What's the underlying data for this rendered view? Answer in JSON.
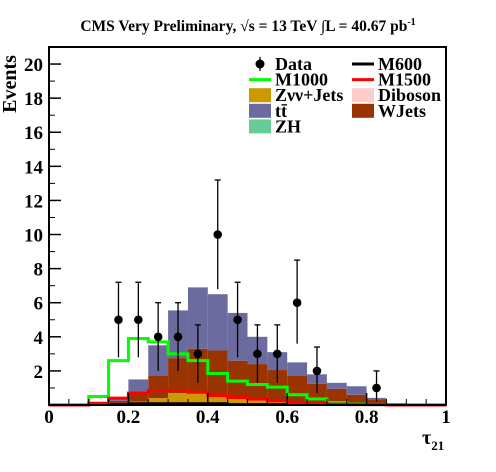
{
  "chart_data": {
    "type": "bar",
    "title": "CMS Very Preliminary, √s = 13 TeV ∫L = 40.67 pb",
    "title_superscript": "-1",
    "xlabel": "τ",
    "xlabel_subscript": "21",
    "ylabel": "Events",
    "xlim": [
      0,
      1
    ],
    "ylim": [
      0,
      21
    ],
    "xticks": [
      "0",
      "0.2",
      "0.4",
      "0.6",
      "0.8",
      "1"
    ],
    "yticks": [
      "2",
      "4",
      "6",
      "8",
      "10",
      "12",
      "14",
      "16",
      "18",
      "20"
    ],
    "bin_edges": [
      0.0,
      0.05,
      0.1,
      0.15,
      0.2,
      0.25,
      0.3,
      0.35,
      0.4,
      0.45,
      0.5,
      0.55,
      0.6,
      0.65,
      0.7,
      0.75,
      0.8,
      0.85,
      0.9,
      0.95,
      1.0
    ],
    "stacked_series": [
      {
        "name": "Zνν+Jets",
        "color": "#cc9900",
        "values": [
          0,
          0,
          0,
          0.05,
          0.2,
          0.4,
          0.7,
          0.8,
          0.55,
          0.35,
          0.25,
          0.2,
          0.15,
          0.1,
          0.1,
          0.05,
          0.02,
          0,
          0,
          0
        ]
      },
      {
        "name": "WJets",
        "color": "#993300",
        "values": [
          0,
          0,
          0,
          0.2,
          0.55,
          1.3,
          2.05,
          2.5,
          2.65,
          2.25,
          2.15,
          1.85,
          1.55,
          1.15,
          0.85,
          0.55,
          0.3,
          0.1,
          0,
          0
        ]
      },
      {
        "name": "tt̄",
        "color": "#6b6b9f",
        "values": [
          0,
          0,
          0,
          0.15,
          0.75,
          1.8,
          2.8,
          3.6,
          3.3,
          2.8,
          1.6,
          1.05,
          0.8,
          0.55,
          0.35,
          0.5,
          0.1,
          0,
          0,
          0
        ]
      }
    ],
    "other_series": [
      {
        "name": "Diboson",
        "color": "#ffcccc",
        "values": []
      },
      {
        "name": "ZH",
        "color": "#66cc99",
        "values": []
      }
    ],
    "signal_series": [
      {
        "name": "M600",
        "color": "#000000",
        "values": [
          0,
          0,
          0.05,
          0.05,
          0.1,
          0.1,
          0.1,
          0.1,
          0.1,
          0.05,
          0.05,
          0.05,
          0.05,
          0,
          0,
          0,
          0,
          0,
          0,
          0
        ]
      },
      {
        "name": "M1000",
        "color": "#00ff00",
        "values": [
          0,
          0,
          0.5,
          2.6,
          3.9,
          3.7,
          3.0,
          2.6,
          1.85,
          1.4,
          1.2,
          1.05,
          0.6,
          0.35,
          0.15,
          0.05,
          0.02,
          0,
          0,
          0
        ]
      },
      {
        "name": "M1500",
        "color": "#ff0000",
        "values": [
          0,
          0,
          0.1,
          0.4,
          0.7,
          0.85,
          0.85,
          0.75,
          0.55,
          0.45,
          0.35,
          0.25,
          0.15,
          0.1,
          0.05,
          0.02,
          0.02,
          0,
          0,
          0
        ]
      }
    ],
    "data_points": {
      "name": "Data",
      "x": [
        0.175,
        0.225,
        0.275,
        0.325,
        0.375,
        0.425,
        0.475,
        0.525,
        0.575,
        0.625,
        0.675,
        0.825
      ],
      "y": [
        5,
        5,
        4,
        4,
        3,
        10,
        5,
        3,
        3,
        6,
        2,
        1
      ],
      "err_up": [
        2.2,
        2.2,
        2.0,
        2.0,
        1.7,
        3.2,
        2.2,
        1.7,
        1.7,
        2.5,
        1.4,
        1.0
      ],
      "err_down": [
        2.2,
        2.2,
        2.0,
        2.0,
        1.7,
        3.2,
        2.2,
        1.7,
        1.7,
        2.4,
        1.3,
        0.8
      ]
    },
    "legend": {
      "placement": "top-right",
      "entries_left": [
        {
          "name": "Data",
          "style": "marker"
        },
        {
          "name": "M1000",
          "style": "line",
          "color": "#00ff00"
        },
        {
          "name": "Zνν+Jets",
          "style": "fill",
          "color": "#cc9900"
        },
        {
          "name": "tt̄",
          "style": "fill",
          "color": "#6b6b9f"
        },
        {
          "name": "ZH",
          "style": "fill",
          "color": "#66cc99"
        }
      ],
      "entries_right": [
        {
          "name": "M600",
          "style": "line",
          "color": "#000000"
        },
        {
          "name": "M1500",
          "style": "line",
          "color": "#ff0000"
        },
        {
          "name": "Diboson",
          "style": "fill",
          "color": "#ffcccc"
        },
        {
          "name": "WJets",
          "style": "fill",
          "color": "#993300"
        }
      ]
    }
  }
}
